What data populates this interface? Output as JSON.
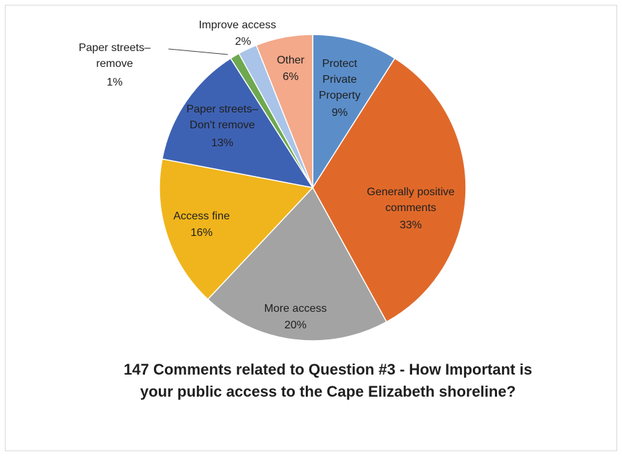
{
  "chart_data": {
    "type": "pie",
    "title_lines": [
      "147 Comments related to Question #3 - How Important is",
      "your public access to the Cape Elizabeth shoreline?"
    ],
    "start_angle_deg": 0,
    "direction": "clockwise",
    "slices": [
      {
        "key": "protect",
        "label_lines": [
          "Protect",
          "Private",
          "Property"
        ],
        "value": 9,
        "value_label": "9%",
        "color": "#5b8ec9",
        "label_color": "#1f1f1f"
      },
      {
        "key": "positive",
        "label_lines": [
          "Generally positive",
          "comments"
        ],
        "value": 33,
        "value_label": "33%",
        "color": "#e0692a",
        "label_color": "#1f1f1f"
      },
      {
        "key": "more",
        "label_lines": [
          "More access"
        ],
        "value": 20,
        "value_label": "20%",
        "color": "#a3a3a3",
        "label_color": "#1f1f1f"
      },
      {
        "key": "fine",
        "label_lines": [
          "Access fine"
        ],
        "value": 16,
        "value_label": "16%",
        "color": "#f0b51c",
        "label_color": "#1f1f1f"
      },
      {
        "key": "dont",
        "label_lines": [
          "Paper streets–",
          "Don't remove"
        ],
        "value": 13,
        "value_label": "13%",
        "color": "#3e62b3",
        "label_color": "#1f1f1f"
      },
      {
        "key": "remove",
        "label_lines": [
          "Paper streets–",
          "remove"
        ],
        "value": 1,
        "value_label": "1%",
        "color": "#6ea850",
        "label_color": "#1f1f1f"
      },
      {
        "key": "improve",
        "label_lines": [
          "Improve access"
        ],
        "value": 2,
        "value_label": "2%",
        "color": "#a9c4e8",
        "label_color": "#1f1f1f"
      },
      {
        "key": "other",
        "label_lines": [
          "Other"
        ],
        "value": 6,
        "value_label": "6%",
        "color": "#f3a98a",
        "label_color": "#1f1f1f"
      }
    ]
  }
}
